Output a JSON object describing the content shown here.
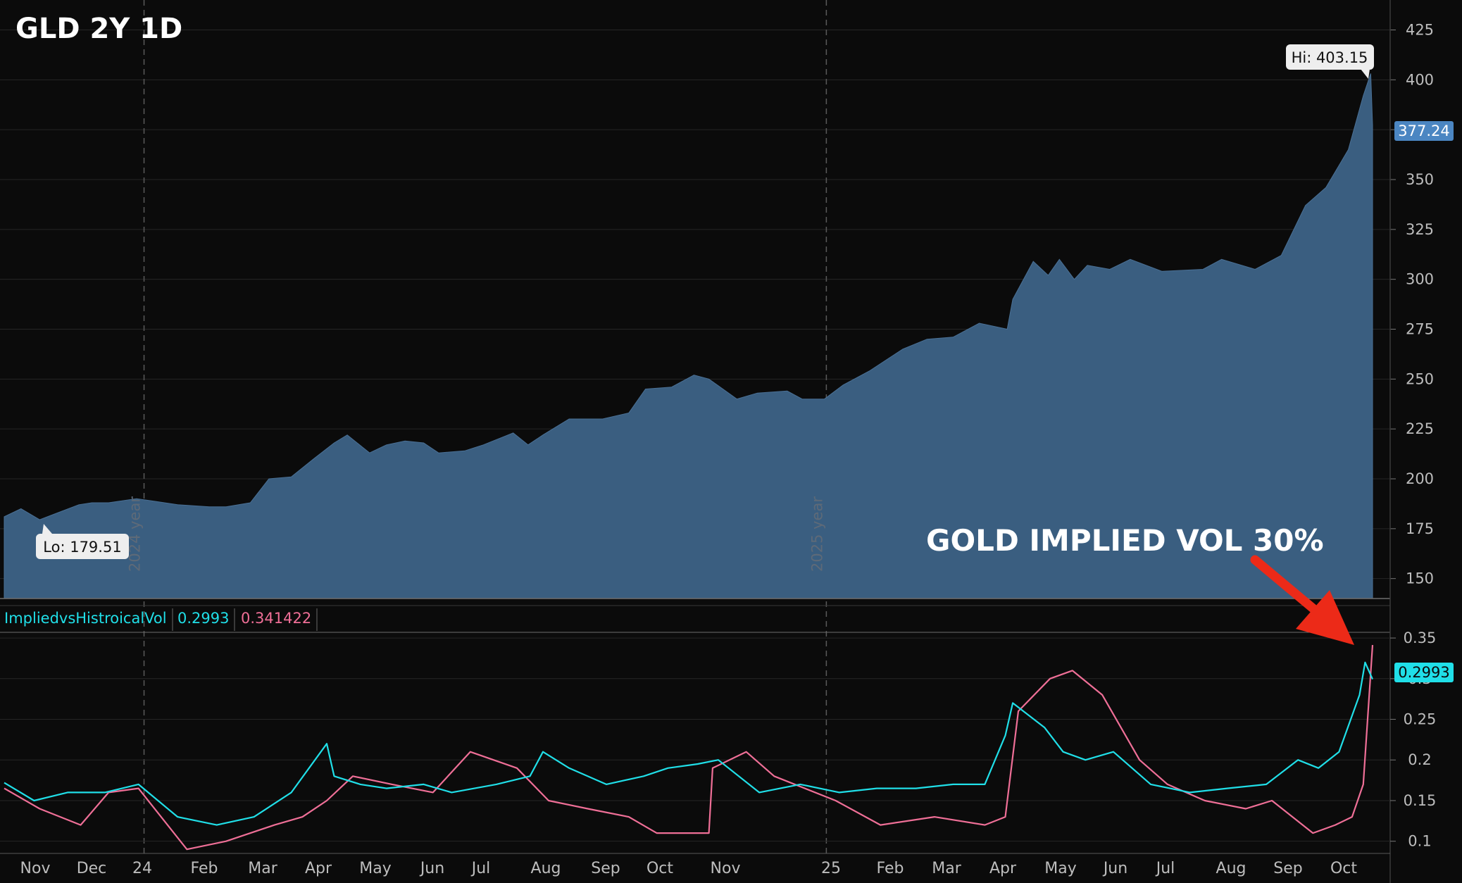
{
  "title": "GLD 2Y 1D",
  "colors": {
    "background": "#0b0b0b",
    "area_fill": "#3a5e80",
    "grid": "#262626",
    "axis_text": "#bdbdbd",
    "implied": "#20dfe8",
    "historical": "#ef6f97",
    "last_price_badge": "#4b86c2",
    "arrow": "#ec2a18"
  },
  "x_axis_labels": [
    "Nov",
    "Dec",
    "24",
    "Feb",
    "Mar",
    "Apr",
    "May",
    "Jun",
    "Jul",
    "Aug",
    "Sep",
    "Oct",
    "Nov",
    "25",
    "Feb",
    "Mar",
    "Apr",
    "May",
    "Jun",
    "Jul",
    "Aug",
    "Sep",
    "Oct"
  ],
  "year_markers": [
    "2024 year",
    "2025 year"
  ],
  "indicator": {
    "name": "ImpliedvsHistroicalVol",
    "implied_value": "0.2993",
    "historical_value": "0.341422"
  },
  "annotation": "GOLD IMPLIED VOL 30%",
  "price_badge": "377.24",
  "vol_badge": "0.2993",
  "hi_label": "Hi: 403.15",
  "lo_label": "Lo: 179.51",
  "chart_data": [
    {
      "type": "area",
      "title": "GLD 2Y 1D",
      "ylim": [
        140,
        440
      ],
      "y_ticks": [
        150,
        175,
        200,
        225,
        250,
        275,
        300,
        325,
        350,
        375,
        400,
        425
      ],
      "x_range": [
        "2023-10-18",
        "2025-10-21"
      ],
      "last_value": 377.24,
      "hi": {
        "date": "2025-10-20",
        "value": 403.15
      },
      "lo": {
        "date": "2023-11-01",
        "value": 179.51
      },
      "series": [
        {
          "x": [
            "2023-10-18",
            "2023-10-27",
            "2023-11-06",
            "2023-11-13",
            "2023-11-27",
            "2023-12-04",
            "2023-12-13",
            "2023-12-28",
            "2024-01-05",
            "2024-01-19",
            "2024-02-05",
            "2024-02-14",
            "2024-02-27",
            "2024-03-08",
            "2024-03-20",
            "2024-04-01",
            "2024-04-12",
            "2024-04-19",
            "2024-05-01",
            "2024-05-10",
            "2024-05-20",
            "2024-05-30",
            "2024-06-07",
            "2024-06-21",
            "2024-07-01",
            "2024-07-17",
            "2024-07-25",
            "2024-08-02",
            "2024-08-16",
            "2024-09-03",
            "2024-09-17",
            "2024-09-26",
            "2024-10-10",
            "2024-10-22",
            "2024-10-30",
            "2024-11-14",
            "2024-11-25",
            "2024-12-11",
            "2024-12-19",
            "2024-12-31",
            "2025-01-10",
            "2025-01-24",
            "2025-02-11",
            "2025-02-24",
            "2025-03-10",
            "2025-03-24",
            "2025-04-08",
            "2025-04-11",
            "2025-04-22",
            "2025-04-30",
            "2025-05-06",
            "2025-05-14",
            "2025-05-21",
            "2025-06-02",
            "2025-06-13",
            "2025-06-30",
            "2025-07-22",
            "2025-08-01",
            "2025-08-19",
            "2025-09-02",
            "2025-09-15",
            "2025-09-26",
            "2025-10-08",
            "2025-10-16",
            "2025-10-20",
            "2025-10-21"
          ],
          "values": [
            181,
            185,
            179.51,
            182,
            187,
            188,
            188,
            190,
            189,
            187,
            186,
            186,
            188,
            200,
            201,
            210,
            218,
            222,
            213,
            217,
            219,
            218,
            213,
            214,
            217,
            223,
            217,
            222,
            230,
            230,
            233,
            245,
            246,
            252,
            250,
            240,
            243,
            244,
            240,
            240,
            247,
            254,
            265,
            270,
            271,
            278,
            275,
            290,
            309,
            302,
            310,
            300,
            307,
            305,
            310,
            304,
            305,
            310,
            305,
            312,
            337,
            346,
            365,
            392,
            403.15,
            377.24
          ]
        }
      ]
    },
    {
      "type": "line",
      "title": "ImpliedvsHistroicalVol",
      "ylim": [
        0.085,
        0.357
      ],
      "y_ticks": [
        0.1,
        0.15,
        0.2,
        0.25,
        0.3,
        0.35
      ],
      "series": [
        {
          "name": "ImpliedvsHistroicalVol",
          "x": [
            "2023-10-18",
            "2023-11-03",
            "2023-11-21",
            "2023-12-11",
            "2023-12-29",
            "2024-01-19",
            "2024-02-09",
            "2024-02-29",
            "2024-03-20",
            "2024-04-08",
            "2024-04-12",
            "2024-04-26",
            "2024-05-10",
            "2024-05-30",
            "2024-06-14",
            "2024-07-08",
            "2024-07-26",
            "2024-08-02",
            "2024-08-16",
            "2024-09-05",
            "2024-09-25",
            "2024-10-08",
            "2024-10-24",
            "2024-11-04",
            "2024-11-26",
            "2024-12-18",
            "2025-01-08",
            "2025-01-28",
            "2025-02-18",
            "2025-03-10",
            "2025-03-27",
            "2025-04-07",
            "2025-04-11",
            "2025-04-28",
            "2025-05-08",
            "2025-05-20",
            "2025-06-04",
            "2025-06-24",
            "2025-07-15",
            "2025-08-04",
            "2025-08-25",
            "2025-09-11",
            "2025-09-22",
            "2025-10-03",
            "2025-10-14",
            "2025-10-17",
            "2025-10-21"
          ],
          "values": [
            0.172,
            0.15,
            0.16,
            0.16,
            0.17,
            0.13,
            0.12,
            0.13,
            0.16,
            0.22,
            0.18,
            0.17,
            0.165,
            0.17,
            0.16,
            0.17,
            0.18,
            0.21,
            0.19,
            0.17,
            0.18,
            0.19,
            0.195,
            0.2,
            0.16,
            0.17,
            0.16,
            0.165,
            0.165,
            0.17,
            0.17,
            0.23,
            0.27,
            0.24,
            0.21,
            0.2,
            0.21,
            0.17,
            0.16,
            0.165,
            0.17,
            0.2,
            0.19,
            0.21,
            0.28,
            0.32,
            0.2993
          ]
        },
        {
          "name": "ImpliedvsHistroicalVol",
          "x": [
            "2023-10-18",
            "2023-11-06",
            "2023-11-28",
            "2023-12-13",
            "2023-12-29",
            "2024-01-24",
            "2024-02-14",
            "2024-03-11",
            "2024-03-26",
            "2024-04-08",
            "2024-04-22",
            "2024-05-13",
            "2024-06-04",
            "2024-06-24",
            "2024-07-19",
            "2024-08-05",
            "2024-08-26",
            "2024-09-17",
            "2024-10-02",
            "2024-10-30",
            "2024-11-01",
            "2024-11-19",
            "2024-12-04",
            "2025-01-06",
            "2025-01-30",
            "2025-02-28",
            "2025-03-27",
            "2025-04-07",
            "2025-04-14",
            "2025-05-01",
            "2025-05-13",
            "2025-05-29",
            "2025-06-18",
            "2025-07-03",
            "2025-07-23",
            "2025-08-14",
            "2025-08-28",
            "2025-09-19",
            "2025-10-01",
            "2025-10-10",
            "2025-10-16",
            "2025-10-21"
          ],
          "values": [
            0.165,
            0.14,
            0.12,
            0.16,
            0.165,
            0.09,
            0.1,
            0.12,
            0.13,
            0.15,
            0.18,
            0.17,
            0.16,
            0.21,
            0.19,
            0.15,
            0.14,
            0.13,
            0.11,
            0.11,
            0.19,
            0.21,
            0.18,
            0.15,
            0.12,
            0.13,
            0.12,
            0.13,
            0.26,
            0.3,
            0.31,
            0.28,
            0.2,
            0.17,
            0.15,
            0.14,
            0.15,
            0.11,
            0.12,
            0.13,
            0.17,
            0.341422
          ]
        }
      ]
    }
  ]
}
